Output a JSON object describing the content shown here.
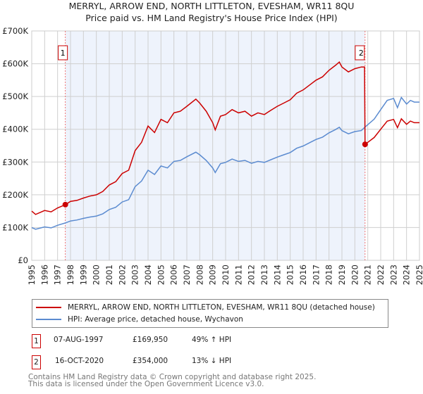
{
  "chart_data": {
    "type": "line",
    "title": "MERRYL, ARROW END, NORTH LITTLETON, EVESHAM, WR11 8QU",
    "subtitle": "Price paid vs. HM Land Registry's House Price Index (HPI)",
    "xlabel": "",
    "ylabel": "",
    "xlim": [
      1995,
      2025
    ],
    "ylim": [
      0,
      700000
    ],
    "y_ticks": [
      0,
      100000,
      200000,
      300000,
      400000,
      500000,
      600000,
      700000
    ],
    "y_tick_labels": [
      "£0",
      "£100K",
      "£200K",
      "£300K",
      "£400K",
      "£500K",
      "£600K",
      "£700K"
    ],
    "x_ticks": [
      "1995",
      "1996",
      "1997",
      "1998",
      "1999",
      "2000",
      "2001",
      "2002",
      "2003",
      "2004",
      "2005",
      "2006",
      "2007",
      "2008",
      "2009",
      "2010",
      "2011",
      "2012",
      "2013",
      "2014",
      "2015",
      "2016",
      "2017",
      "2018",
      "2019",
      "2020",
      "2021",
      "2022",
      "2023",
      "2024",
      "2025"
    ],
    "grid": true,
    "legend_position": "below",
    "series": [
      {
        "name": "MERRYL, ARROW END, NORTH LITTLETON, EVESHAM, WR11 8QU (detached house)",
        "color": "#cc0000",
        "x": [
          1995,
          1995.3,
          1996,
          1996.5,
          1997,
          1997.6,
          1998,
          1998.5,
          1999,
          1999.5,
          2000,
          2000.5,
          2001,
          2001.5,
          2002,
          2002.5,
          2003,
          2003.5,
          2004,
          2004.5,
          2005,
          2005.5,
          2006,
          2006.5,
          2007,
          2007.7,
          2008,
          2008.5,
          2009,
          2009.2,
          2009.6,
          2010,
          2010.5,
          2011,
          2011.5,
          2012,
          2012.5,
          2013,
          2013.5,
          2014,
          2014.5,
          2015,
          2015.5,
          2016,
          2016.5,
          2017,
          2017.5,
          2018,
          2018.5,
          2018.8,
          2019,
          2019.5,
          2020,
          2020.5,
          2020.75,
          2020.79,
          2021,
          2021.5,
          2022,
          2022.5,
          2023,
          2023.3,
          2023.6,
          2024,
          2024.3,
          2024.6,
          2025
        ],
        "y": [
          150000,
          140000,
          152000,
          148000,
          160000,
          169950,
          180000,
          183000,
          190000,
          196000,
          200000,
          210000,
          230000,
          240000,
          265000,
          275000,
          335000,
          360000,
          410000,
          390000,
          430000,
          420000,
          450000,
          455000,
          470000,
          492000,
          480000,
          455000,
          420000,
          398000,
          440000,
          445000,
          460000,
          450000,
          455000,
          440000,
          450000,
          445000,
          458000,
          470000,
          480000,
          490000,
          510000,
          520000,
          535000,
          550000,
          560000,
          580000,
          595000,
          605000,
          590000,
          575000,
          585000,
          590000,
          590000,
          354000,
          360000,
          375000,
          400000,
          425000,
          430000,
          405000,
          432000,
          415000,
          425000,
          420000,
          420000
        ]
      },
      {
        "name": "HPI: Average price, detached house, Wychavon",
        "color": "#5b8bd0",
        "x": [
          1995,
          1995.3,
          1996,
          1996.5,
          1997,
          1997.6,
          1998,
          1998.5,
          1999,
          1999.5,
          2000,
          2000.5,
          2001,
          2001.5,
          2002,
          2002.5,
          2003,
          2003.5,
          2004,
          2004.5,
          2005,
          2005.5,
          2006,
          2006.5,
          2007,
          2007.7,
          2008,
          2008.5,
          2009,
          2009.2,
          2009.6,
          2010,
          2010.5,
          2011,
          2011.5,
          2012,
          2012.5,
          2013,
          2013.5,
          2014,
          2014.5,
          2015,
          2015.5,
          2016,
          2016.5,
          2017,
          2017.5,
          2018,
          2018.5,
          2018.8,
          2019,
          2019.5,
          2020,
          2020.5,
          2020.79,
          2021,
          2021.5,
          2022,
          2022.5,
          2023,
          2023.3,
          2023.6,
          2024,
          2024.3,
          2024.6,
          2025
        ],
        "y": [
          100000,
          95000,
          102000,
          99000,
          107000,
          114000,
          120000,
          123000,
          128000,
          132000,
          135000,
          142000,
          155000,
          162000,
          178000,
          185000,
          225000,
          242000,
          275000,
          262000,
          288000,
          282000,
          302000,
          305000,
          316000,
          330000,
          322000,
          305000,
          282000,
          268000,
          295000,
          299000,
          309000,
          302000,
          305000,
          296000,
          302000,
          299000,
          307000,
          315000,
          322000,
          329000,
          342000,
          349000,
          359000,
          369000,
          376000,
          389000,
          399000,
          406000,
          396000,
          386000,
          393000,
          396000,
          407000,
          414000,
          431000,
          460000,
          488000,
          494000,
          466000,
          497000,
          477000,
          488000,
          483000,
          483000
        ]
      }
    ],
    "annotations": [
      {
        "label": "1",
        "x": 1997.6,
        "y": 169950,
        "date": "07-AUG-1997",
        "price": "£169,950",
        "hpi_change": "49% ↑ HPI"
      },
      {
        "label": "2",
        "x": 2020.79,
        "y": 354000,
        "date": "16-OCT-2020",
        "price": "£354,000",
        "hpi_change": "13% ↓ HPI"
      }
    ],
    "shade_color": "#eef3fc"
  },
  "footer": {
    "line1": "Contains HM Land Registry data © Crown copyright and database right 2025.",
    "line2": "This data is licensed under the Open Government Licence v3.0."
  }
}
